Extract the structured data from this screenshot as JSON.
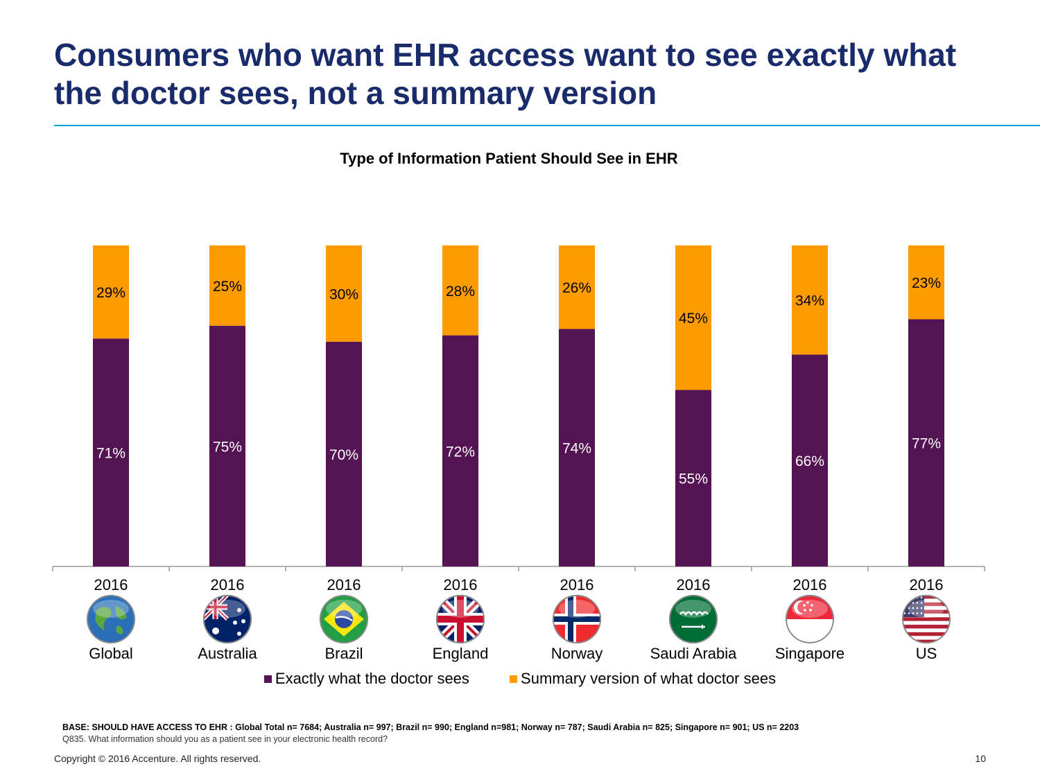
{
  "slide": {
    "title": "Consumers who want EHR access want to see exactly what the doctor sees, not a summary version",
    "base_note": "BASE: SHOULD HAVE ACCESS TO EHR : Global Total n= 7684; Australia n= 997; Brazil n= 990; England n=981; Norway n= 787; Saudi Arabia  n= 825; Singapore n= 901; US n= 2203",
    "question_note": "Q835. What information should you as a patient see in your electronic health record?",
    "copyright": "Copyright © 2016 Accenture. All rights reserved.",
    "page_number": "10"
  },
  "chart_data": {
    "type": "bar",
    "stacked": true,
    "title": "Type of Information Patient Should See in EHR",
    "categories": [
      "2016",
      "2016",
      "2016",
      "2016",
      "2016",
      "2016",
      "2016",
      "2016"
    ],
    "countries": [
      "Global",
      "Australia",
      "Brazil",
      "England",
      "Norway",
      "Saudi Arabia",
      "Singapore",
      "US"
    ],
    "flag_icons": [
      "globe-icon",
      "australia-flag-icon",
      "brazil-flag-icon",
      "england-flag-icon",
      "norway-flag-icon",
      "saudi-arabia-flag-icon",
      "singapore-flag-icon",
      "us-flag-icon"
    ],
    "series": [
      {
        "name": "Exactly what the doctor sees",
        "color": "#541352",
        "values": [
          71,
          75,
          70,
          72,
          74,
          55,
          66,
          77
        ]
      },
      {
        "name": "Summary version of what doctor sees",
        "color": "#fd9b00",
        "values": [
          29,
          25,
          30,
          28,
          26,
          45,
          34,
          23
        ]
      }
    ],
    "value_suffix": "%",
    "ylim": [
      0,
      100
    ],
    "grid": false,
    "legend": "bottom"
  }
}
